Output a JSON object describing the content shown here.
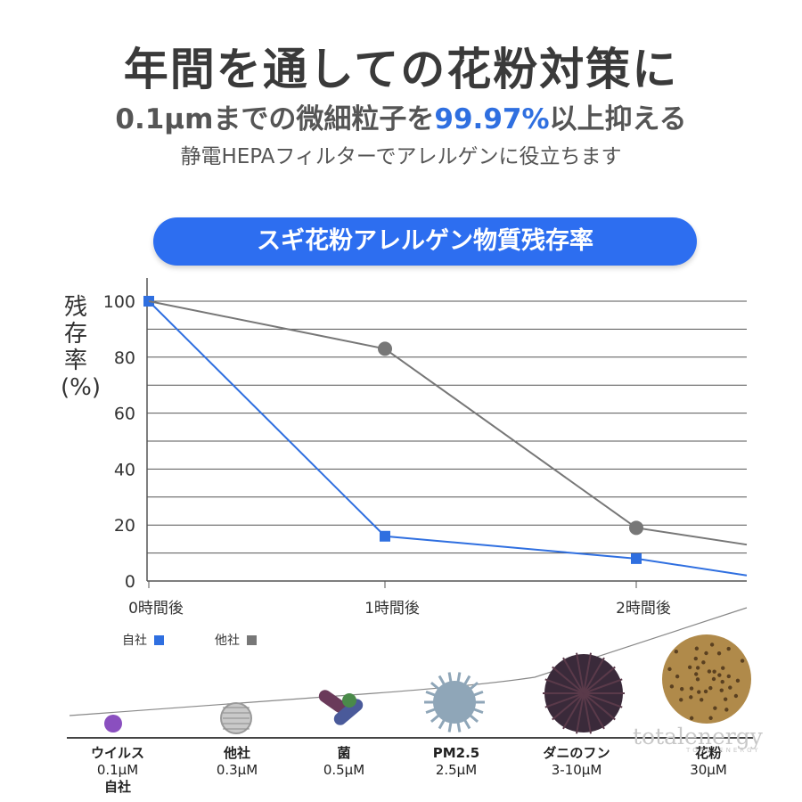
{
  "header": {
    "title": "年間を通しての花粉対策に",
    "subtitle_pre": "0.1μmまでの微細粒子を",
    "subtitle_highlight": "99.97%",
    "subtitle_post": "以上抑える",
    "tagline": "静電HEPAフィルターでアレルゲンに役立ちます"
  },
  "chart_data": {
    "type": "line",
    "title": "スギ花粉アレルゲン物質残存率",
    "ylabel": "残存率(%)",
    "categories": [
      "0時間後",
      "1時間後",
      "2時間後"
    ],
    "yticks": [
      0,
      20,
      40,
      60,
      80,
      100
    ],
    "ylim": [
      0,
      100
    ],
    "grid": true,
    "series": [
      {
        "name": "自社",
        "color": "#2f6fe0",
        "marker": "square",
        "values": [
          100,
          16,
          8
        ],
        "tail_value": 2
      },
      {
        "name": "他社",
        "color": "#777777",
        "marker": "circle",
        "values": [
          100,
          83,
          19
        ],
        "tail_value": 13
      }
    ],
    "legend_position": "bottom-left"
  },
  "particles": [
    {
      "name": "ウイルス",
      "size": "0.1μM",
      "note": "自社",
      "icon": "virus-icon",
      "color": "#8a4fbf"
    },
    {
      "name": "他社",
      "size": "0.3μM",
      "note": "",
      "icon": "mesh-sphere-icon",
      "color": "#9a9a9a"
    },
    {
      "name": "菌",
      "size": "0.5μM",
      "note": "",
      "icon": "bacteria-icon",
      "color": "#6a3a5a"
    },
    {
      "name": "PM2.5",
      "size": "2.5μM",
      "note": "",
      "icon": "pm25-icon",
      "color": "#8fa6b8"
    },
    {
      "name": "ダニのフン",
      "size": "3-10μM",
      "note": "",
      "icon": "mite-dropping-icon",
      "color": "#3a2a3a"
    },
    {
      "name": "花粉",
      "size": "30μM",
      "note": "",
      "icon": "pollen-icon",
      "color": "#b08a4a"
    }
  ],
  "watermark": {
    "brand": "totalenergy",
    "sub": "TOTALENERGY"
  }
}
